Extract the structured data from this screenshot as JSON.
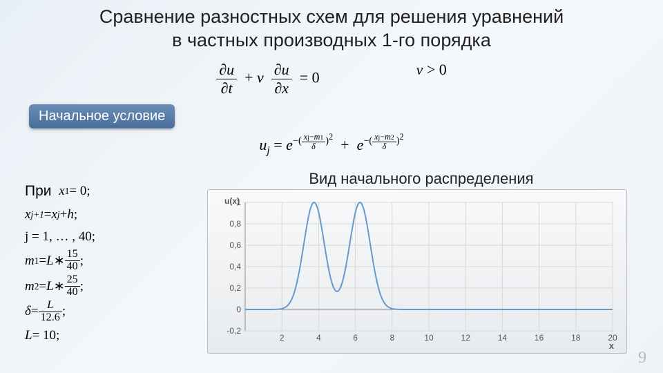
{
  "title_line1": "Сравнение разностных схем для решения уравнений",
  "title_line2": "в частных производных 1-го порядка",
  "eq_main_left": "∂u/∂t + v ∂u/∂x = 0",
  "eq_main_right": "v > 0",
  "badge": "Начальное условие",
  "eq2_label": "uⱼ =",
  "eq2_exp1_num": "xⱼ − m₁",
  "eq2_exp1_den": "δ",
  "eq2_exp2_num": "xⱼ − m₂",
  "eq2_exp2_den": "δ",
  "left": {
    "l0_pre": "При",
    "l0": "x₁ = 0;",
    "l1": "xⱼ₊₁ = xⱼ + h;",
    "l2": "j = 1, … , 40;",
    "l3_lhs": "m₁ = L ∗",
    "l3_num": "15",
    "l3_den": "40",
    "l4_lhs": "m₂ = L ∗",
    "l4_num": "25",
    "l4_den": "40",
    "l5_lhs": "δ =",
    "l5_num": "L",
    "l5_den": "12.6",
    "l6": "L = 10;"
  },
  "chart": {
    "title": "Вид начального распределения",
    "ylabel": "u(x)",
    "xlabel": "x",
    "xlim": [
      0,
      20
    ],
    "ylim": [
      -0.2,
      1.0
    ],
    "xticks": [
      2,
      4,
      6,
      8,
      10,
      12,
      14,
      16,
      18,
      20
    ],
    "yticks": [
      -0.2,
      0,
      0.2,
      0.4,
      0.6,
      0.8,
      1
    ],
    "grid_color": "#d8d8d8",
    "axis_color": "#888888",
    "line_color": "#6699cc",
    "line_width": 2,
    "background": "#f4f5f7",
    "label_color": "#555555",
    "label_fontsize": 12,
    "m1": 3.75,
    "m2": 6.25,
    "delta": 0.794
  },
  "page_number": "9",
  "colors": {
    "bg_grad_start": "#e8eff5",
    "bg_grad_end": "#eef3f8",
    "badge_bg1": "#6a8db8",
    "badge_bg2": "#4a6e9a"
  }
}
